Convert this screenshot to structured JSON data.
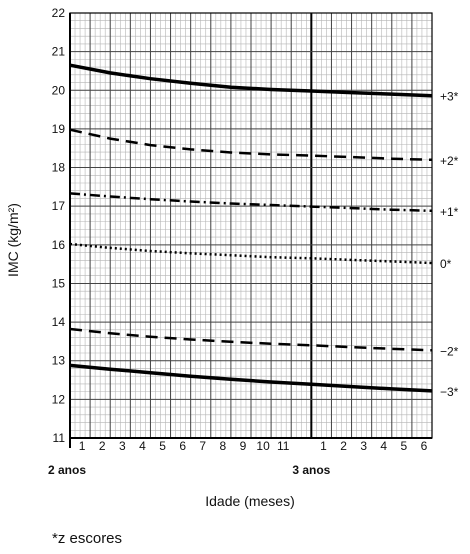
{
  "chart_data": {
    "type": "line",
    "xlabel": "Idade (meses)",
    "ylabel": "IMC (kg/m²)",
    "xlim": [
      24,
      42
    ],
    "ylim": [
      11,
      22
    ],
    "y_ticks": [
      "11",
      "12",
      "13",
      "14",
      "15",
      "16",
      "17",
      "18",
      "19",
      "20",
      "21",
      "22"
    ],
    "x_minor_ticks": [
      "1",
      "2",
      "3",
      "4",
      "5",
      "6",
      "7",
      "8",
      "9",
      "10",
      "11",
      "1",
      "2",
      "3",
      "4",
      "5",
      "6"
    ],
    "x_major_labels": [
      {
        "month": 24,
        "label": "2 anos"
      },
      {
        "month": 36,
        "label": "3 anos"
      }
    ],
    "grid": true,
    "series": [
      {
        "name": "+3*",
        "style": "solid-thick",
        "x": [
          24,
          26,
          28,
          30,
          32,
          34,
          36,
          38,
          40,
          42
        ],
        "y": [
          20.65,
          20.45,
          20.3,
          20.18,
          20.08,
          20.02,
          19.98,
          19.94,
          19.9,
          19.86
        ]
      },
      {
        "name": "+2*",
        "style": "dashed",
        "x": [
          24,
          26,
          28,
          30,
          32,
          34,
          36,
          38,
          40,
          42
        ],
        "y": [
          18.98,
          18.75,
          18.58,
          18.47,
          18.39,
          18.34,
          18.31,
          18.27,
          18.23,
          18.2
        ]
      },
      {
        "name": "+1*",
        "style": "dashdot",
        "x": [
          24,
          26,
          28,
          30,
          32,
          34,
          36,
          38,
          40,
          42
        ],
        "y": [
          17.33,
          17.25,
          17.18,
          17.12,
          17.07,
          17.03,
          16.99,
          16.95,
          16.91,
          16.88
        ]
      },
      {
        "name": "0*",
        "style": "dotted",
        "x": [
          24,
          26,
          28,
          30,
          32,
          34,
          36,
          38,
          40,
          42
        ],
        "y": [
          16.02,
          15.92,
          15.84,
          15.78,
          15.73,
          15.68,
          15.65,
          15.61,
          15.57,
          15.53
        ]
      },
      {
        "name": "−2*",
        "style": "dashed",
        "x": [
          24,
          26,
          28,
          30,
          32,
          34,
          36,
          38,
          40,
          42
        ],
        "y": [
          13.82,
          13.71,
          13.62,
          13.55,
          13.49,
          13.44,
          13.4,
          13.35,
          13.31,
          13.27
        ]
      },
      {
        "name": "−3*",
        "style": "solid-thick",
        "x": [
          24,
          26,
          28,
          30,
          32,
          34,
          36,
          38,
          40,
          42
        ],
        "y": [
          12.88,
          12.78,
          12.69,
          12.6,
          12.52,
          12.45,
          12.39,
          12.33,
          12.27,
          12.22
        ]
      }
    ]
  },
  "footnote": "*z escores"
}
